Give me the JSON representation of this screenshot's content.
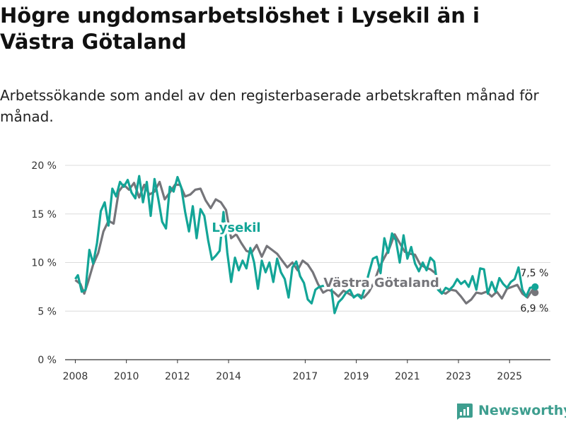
{
  "title": "Högre ungdomsarbetslöshet i Lysekil än i Västra Götaland",
  "subtitle": "Arbetssökande som andel av den registerbaserade arbetskraften månad för månad.",
  "brand": "Newsworthy",
  "colors": {
    "lysekil": "#13a597",
    "vg": "#75757a",
    "grid": "#dcdcdc",
    "axis": "#333333"
  },
  "chart_data": {
    "type": "line",
    "title": "Högre ungdomsarbetslöshet i Lysekil än i Västra Götaland",
    "xlabel": "",
    "ylabel": "",
    "xlim": [
      2007.6,
      2026.6
    ],
    "ylim": [
      0,
      20
    ],
    "y_ticks": [
      0,
      5,
      10,
      15,
      20
    ],
    "y_tick_labels": [
      "0 %",
      "5 %",
      "10 %",
      "15 %",
      "20 %"
    ],
    "x_ticks": [
      2008,
      2010,
      2012,
      2014,
      2017,
      2019,
      2021,
      2023,
      2025
    ],
    "x_tick_labels": [
      "2008",
      "2010",
      "2012",
      "2014",
      "2017",
      "2019",
      "2021",
      "2023",
      "2025"
    ],
    "series": [
      {
        "name": "Västra Götaland",
        "label": "Västra Götaland",
        "end_label": "6,9 %",
        "x": [
          2008.0,
          2008.2,
          2008.35,
          2008.5,
          2008.7,
          2008.9,
          2009.1,
          2009.3,
          2009.5,
          2009.7,
          2009.9,
          2010.1,
          2010.3,
          2010.5,
          2010.7,
          2010.9,
          2011.1,
          2011.3,
          2011.5,
          2011.7,
          2011.9,
          2012.1,
          2012.3,
          2012.5,
          2012.7,
          2012.9,
          2013.1,
          2013.3,
          2013.5,
          2013.7,
          2013.9,
          2014.1,
          2014.3,
          2014.5,
          2014.7,
          2014.9,
          2015.1,
          2015.3,
          2015.5,
          2015.7,
          2015.9,
          2016.1,
          2016.3,
          2016.5,
          2016.7,
          2016.9,
          2017.1,
          2017.3,
          2017.5,
          2017.7,
          2017.9,
          2018.1,
          2018.3,
          2018.5,
          2018.7,
          2018.9,
          2019.1,
          2019.3,
          2019.5,
          2019.7,
          2019.9,
          2020.1,
          2020.3,
          2020.5,
          2020.7,
          2020.9,
          2021.1,
          2021.3,
          2021.5,
          2021.7,
          2021.9,
          2022.1,
          2022.3,
          2022.5,
          2022.7,
          2022.9,
          2023.1,
          2023.3,
          2023.5,
          2023.7,
          2023.9,
          2024.1,
          2024.3,
          2024.5,
          2024.7,
          2024.9,
          2025.1,
          2025.3,
          2025.5,
          2025.7,
          2025.9,
          2026.0
        ],
        "values": [
          8.2,
          7.8,
          6.8,
          8.0,
          9.8,
          11.0,
          13.2,
          14.3,
          14.0,
          17.3,
          18.0,
          17.5,
          18.2,
          16.7,
          18.0,
          17.0,
          17.3,
          18.3,
          16.5,
          17.2,
          18.0,
          18.0,
          16.8,
          17.0,
          17.5,
          17.6,
          16.4,
          15.6,
          16.5,
          16.2,
          15.4,
          12.5,
          12.9,
          12.0,
          11.2,
          11.0,
          11.8,
          10.6,
          11.7,
          11.3,
          10.9,
          10.2,
          9.5,
          10.0,
          9.2,
          10.2,
          9.8,
          9.0,
          7.8,
          6.9,
          7.2,
          7.0,
          6.5,
          7.1,
          6.8,
          6.5,
          6.7,
          6.4,
          7.0,
          8.0,
          9.5,
          10.5,
          11.5,
          12.9,
          12.0,
          11.1,
          10.9,
          10.8,
          9.8,
          9.5,
          9.3,
          8.9,
          7.0,
          6.8,
          7.2,
          7.1,
          6.5,
          5.8,
          6.2,
          6.9,
          6.8,
          7.0,
          6.5,
          7.0,
          6.3,
          7.3,
          7.5,
          7.7,
          6.8,
          6.4,
          7.2,
          6.9
        ]
      },
      {
        "name": "Lysekil",
        "label": "Lysekil",
        "end_label": "7,5 %",
        "x": [
          2008.0,
          2008.1,
          2008.25,
          2008.4,
          2008.55,
          2008.7,
          2008.85,
          2009.0,
          2009.15,
          2009.3,
          2009.45,
          2009.6,
          2009.75,
          2009.9,
          2010.05,
          2010.2,
          2010.35,
          2010.5,
          2010.65,
          2010.8,
          2010.95,
          2011.1,
          2011.25,
          2011.4,
          2011.55,
          2011.7,
          2011.85,
          2012.0,
          2012.15,
          2012.3,
          2012.45,
          2012.6,
          2012.75,
          2012.9,
          2013.05,
          2013.2,
          2013.35,
          2013.5,
          2013.65,
          2013.8,
          2013.95,
          2014.1,
          2014.25,
          2014.4,
          2014.55,
          2014.7,
          2014.85,
          2015.0,
          2015.15,
          2015.3,
          2015.45,
          2015.6,
          2015.75,
          2015.9,
          2016.05,
          2016.2,
          2016.35,
          2016.5,
          2016.65,
          2016.8,
          2016.95,
          2017.1,
          2017.25,
          2017.4,
          2017.55,
          2017.7,
          2017.85,
          2018.0,
          2018.15,
          2018.3,
          2018.45,
          2018.6,
          2018.75,
          2018.9,
          2019.05,
          2019.2,
          2019.35,
          2019.5,
          2019.65,
          2019.8,
          2019.95,
          2020.1,
          2020.25,
          2020.4,
          2020.55,
          2020.7,
          2020.85,
          2021.0,
          2021.15,
          2021.3,
          2021.45,
          2021.6,
          2021.75,
          2021.9,
          2022.05,
          2022.2,
          2022.35,
          2022.5,
          2022.65,
          2022.8,
          2022.95,
          2023.1,
          2023.25,
          2023.4,
          2023.55,
          2023.7,
          2023.85,
          2024.0,
          2024.15,
          2024.3,
          2024.45,
          2024.6,
          2024.75,
          2024.9,
          2025.05,
          2025.2,
          2025.35,
          2025.5,
          2025.65,
          2025.8,
          2026.0
        ],
        "values": [
          8.3,
          8.7,
          7.0,
          7.2,
          11.3,
          9.9,
          12.0,
          15.3,
          16.2,
          13.8,
          17.6,
          16.8,
          18.3,
          17.8,
          18.5,
          17.2,
          16.6,
          18.9,
          16.2,
          18.3,
          14.8,
          18.6,
          16.5,
          14.2,
          13.5,
          17.8,
          17.3,
          18.8,
          17.7,
          15.2,
          13.2,
          15.8,
          12.5,
          15.5,
          14.8,
          12.3,
          10.3,
          10.7,
          11.2,
          15.2,
          11.0,
          8.0,
          10.5,
          9.2,
          10.2,
          9.4,
          11.5,
          10.0,
          7.3,
          10.2,
          9.0,
          10.0,
          8.0,
          10.4,
          9.0,
          8.3,
          6.4,
          9.5,
          10.1,
          8.6,
          7.9,
          6.2,
          5.8,
          7.2,
          7.5,
          7.6,
          7.6,
          7.8,
          4.8,
          5.9,
          6.3,
          6.9,
          7.2,
          6.4,
          6.7,
          6.3,
          7.5,
          9.0,
          10.4,
          10.6,
          8.9,
          12.5,
          11.0,
          13.0,
          12.3,
          10.0,
          12.8,
          10.4,
          11.6,
          9.9,
          9.1,
          10.0,
          9.2,
          10.5,
          10.1,
          7.2,
          6.8,
          7.4,
          7.2,
          7.6,
          8.3,
          7.8,
          8.1,
          7.5,
          8.6,
          7.2,
          9.4,
          9.3,
          6.8,
          8.0,
          7.0,
          8.4,
          7.8,
          7.4,
          8.0,
          8.3,
          9.5,
          7.2,
          6.5,
          7.4,
          7.5
        ]
      }
    ]
  }
}
